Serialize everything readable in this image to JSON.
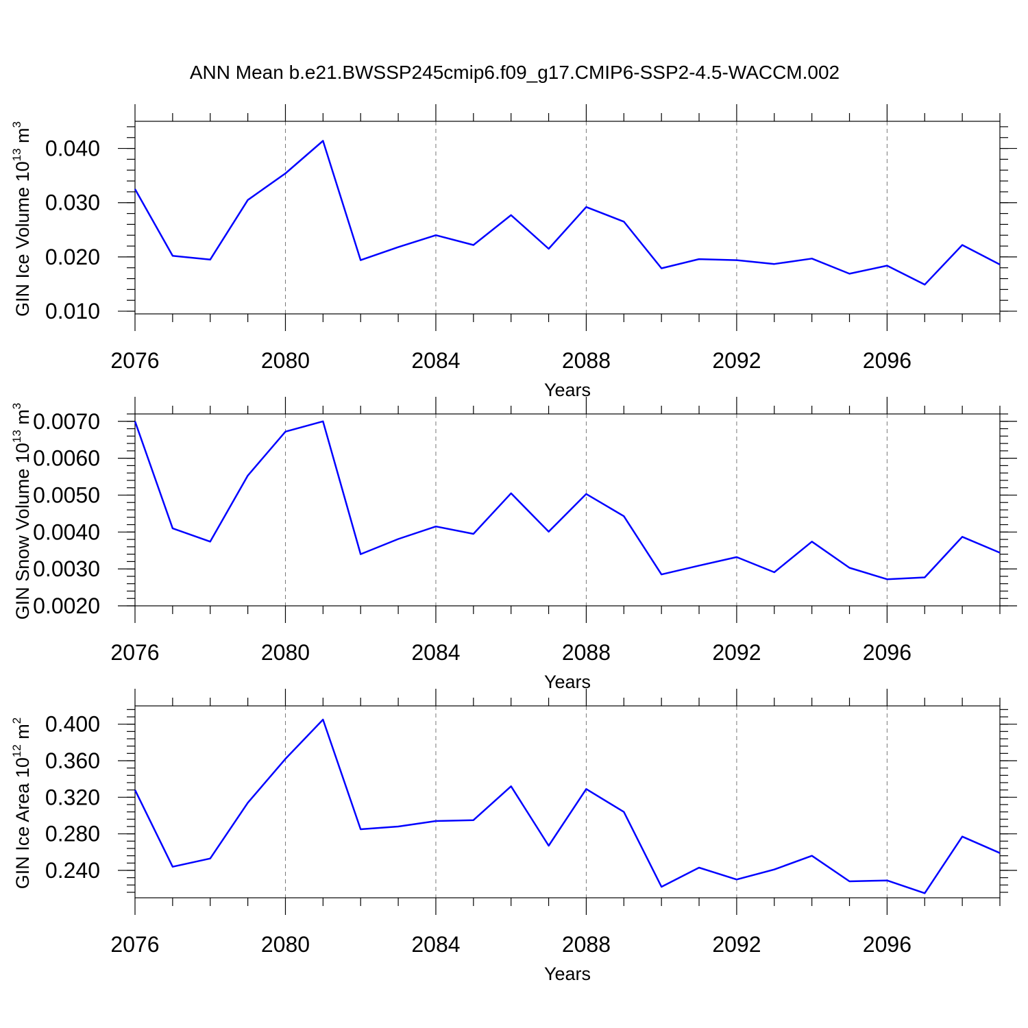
{
  "title": "ANN Mean b.e21.BWSSP245cmip6.f09_g17.CMIP6-SSP2-4.5-WACCM.002",
  "chart_data": [
    {
      "type": "line",
      "ylabel": "GIN Ice Volume 10",
      "ylabel_exponent": "13",
      "ylabel_unit": "m",
      "ylabel_unit_exponent": "3",
      "xlabel": "Years",
      "xlim": [
        2076,
        2099
      ],
      "ylim": [
        0.0095,
        0.045
      ],
      "xticks": [
        2076,
        2080,
        2084,
        2088,
        2092,
        2096
      ],
      "yticks": [
        0.01,
        0.02,
        0.03,
        0.04
      ],
      "ytick_labels": [
        "0.010",
        "0.020",
        "0.030",
        "0.040"
      ],
      "y_minor_step": 0.002,
      "grid": "vertical dashed at major x ticks",
      "line_color": "#0000ff",
      "x": [
        2076,
        2077,
        2078,
        2079,
        2080,
        2081,
        2082,
        2083,
        2084,
        2085,
        2086,
        2087,
        2088,
        2089,
        2090,
        2091,
        2092,
        2093,
        2094,
        2095,
        2096,
        2097,
        2098,
        2099
      ],
      "values": [
        0.0325,
        0.0202,
        0.0195,
        0.0305,
        0.0354,
        0.0414,
        0.0194,
        0.0218,
        0.024,
        0.0222,
        0.0277,
        0.0215,
        0.0292,
        0.0265,
        0.0179,
        0.0196,
        0.0194,
        0.0187,
        0.0197,
        0.0169,
        0.0184,
        0.0149,
        0.0222,
        0.0186
      ]
    },
    {
      "type": "line",
      "ylabel": "GIN Snow Volume 10",
      "ylabel_exponent": "13",
      "ylabel_unit": "m",
      "ylabel_unit_exponent": "3",
      "xlabel": "Years",
      "xlim": [
        2076,
        2099
      ],
      "ylim": [
        0.002,
        0.0072
      ],
      "xticks": [
        2076,
        2080,
        2084,
        2088,
        2092,
        2096
      ],
      "yticks": [
        0.002,
        0.003,
        0.004,
        0.005,
        0.006,
        0.007
      ],
      "ytick_labels": [
        "0.0020",
        "0.0030",
        "0.0040",
        "0.0050",
        "0.0060",
        "0.0070"
      ],
      "y_minor_step": 0.0002,
      "grid": "vertical dashed at major x ticks",
      "line_color": "#0000ff",
      "x": [
        2076,
        2077,
        2078,
        2079,
        2080,
        2081,
        2082,
        2083,
        2084,
        2085,
        2086,
        2087,
        2088,
        2089,
        2090,
        2091,
        2092,
        2093,
        2094,
        2095,
        2096,
        2097,
        2098,
        2099
      ],
      "values": [
        0.007,
        0.0041,
        0.00374,
        0.00553,
        0.00672,
        0.007,
        0.0034,
        0.00381,
        0.00415,
        0.00395,
        0.00505,
        0.00401,
        0.00503,
        0.00443,
        0.00285,
        0.00309,
        0.00332,
        0.00291,
        0.00374,
        0.00303,
        0.00272,
        0.00277,
        0.00387,
        0.00344
      ]
    },
    {
      "type": "line",
      "ylabel": "GIN Ice Area 10",
      "ylabel_exponent": "12",
      "ylabel_unit": "m",
      "ylabel_unit_exponent": "2",
      "xlabel": "Years",
      "xlim": [
        2076,
        2099
      ],
      "ylim": [
        0.21,
        0.42
      ],
      "xticks": [
        2076,
        2080,
        2084,
        2088,
        2092,
        2096
      ],
      "yticks": [
        0.24,
        0.28,
        0.32,
        0.36,
        0.4
      ],
      "ytick_labels": [
        "0.240",
        "0.280",
        "0.320",
        "0.360",
        "0.400"
      ],
      "y_minor_step": 0.008,
      "grid": "vertical dashed at major x ticks",
      "line_color": "#0000ff",
      "x": [
        2076,
        2077,
        2078,
        2079,
        2080,
        2081,
        2082,
        2083,
        2084,
        2085,
        2086,
        2087,
        2088,
        2089,
        2090,
        2091,
        2092,
        2093,
        2094,
        2095,
        2096,
        2097,
        2098,
        2099
      ],
      "values": [
        0.328,
        0.244,
        0.253,
        0.314,
        0.362,
        0.405,
        0.285,
        0.288,
        0.294,
        0.295,
        0.332,
        0.267,
        0.329,
        0.304,
        0.222,
        0.243,
        0.23,
        0.241,
        0.256,
        0.228,
        0.229,
        0.215,
        0.277,
        0.259
      ]
    }
  ]
}
